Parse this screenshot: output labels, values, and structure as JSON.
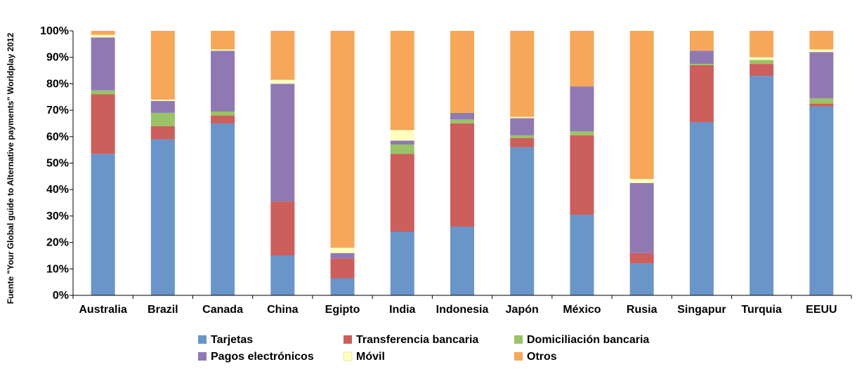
{
  "chart_data": {
    "type": "bar",
    "stacked": true,
    "title": "",
    "xlabel": "",
    "ylabel": "Fuente \"Your Global guide to Alternative payments\" Worldplay 2012",
    "ylim": [
      0,
      100
    ],
    "y_ticks": [
      "0%",
      "10%",
      "20%",
      "30%",
      "40%",
      "50%",
      "60%",
      "70%",
      "80%",
      "90%",
      "100%"
    ],
    "grid": false,
    "legend_position": "bottom",
    "categories": [
      "Australia",
      "Brazil",
      "Canada",
      "China",
      "Egipto",
      "India",
      "Indonesia",
      "Japón",
      "México",
      "Rusia",
      "Singapur",
      "Turquia",
      "EEUU"
    ],
    "series": [
      {
        "name": "Tarjetas",
        "color": "#6a95c9",
        "values": [
          53.5,
          59,
          65,
          15,
          6.5,
          24,
          26,
          56,
          30.5,
          12,
          65.5,
          83,
          71.5
        ]
      },
      {
        "name": "Transferencia  bancaria",
        "color": "#cc5e5b",
        "values": [
          22.5,
          5,
          3,
          20.5,
          7.5,
          29.5,
          39,
          3.5,
          30,
          4,
          21.5,
          4.5,
          1
        ]
      },
      {
        "name": "Domiciliación  bancaria",
        "color": "#9ac266",
        "values": [
          1.5,
          5,
          1.5,
          0,
          0,
          3.5,
          1.5,
          1,
          1.5,
          0,
          0.5,
          1.5,
          2
        ]
      },
      {
        "name": "Pagos  electrónicos",
        "color": "#9079b3",
        "values": [
          20,
          4.5,
          23,
          44.5,
          2,
          1.5,
          2.5,
          6.5,
          17,
          26.5,
          5,
          0,
          17.5
        ]
      },
      {
        "name": "Móvil",
        "color": "#ffffc0",
        "values": [
          1,
          0.5,
          0.5,
          1.5,
          2,
          4,
          0,
          0.5,
          0,
          1.5,
          0,
          1,
          1
        ]
      },
      {
        "name": "Otros",
        "color": "#f6a75a",
        "values": [
          1.5,
          26,
          7,
          18.5,
          82,
          37.5,
          31,
          32.5,
          21,
          56,
          7.5,
          10,
          7
        ]
      }
    ]
  }
}
